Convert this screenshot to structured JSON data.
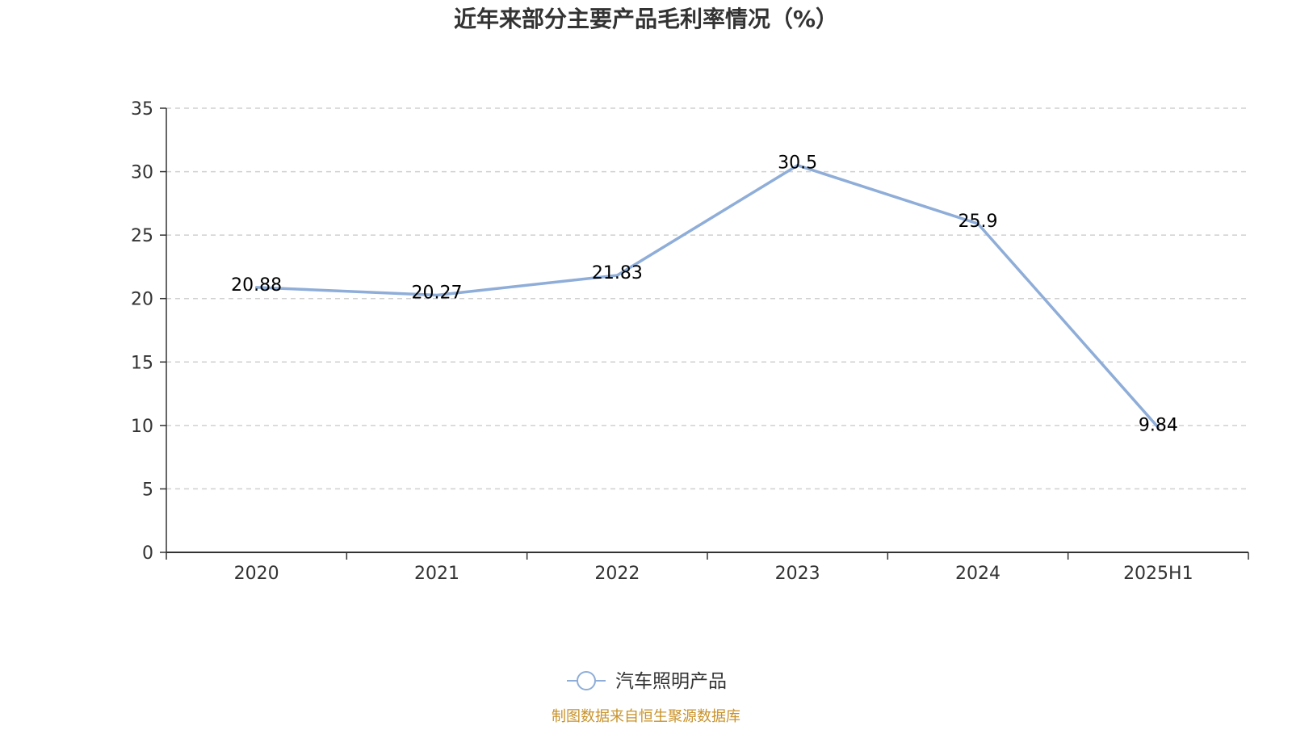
{
  "chart_data": {
    "type": "line",
    "title": "近年来部分主要产品毛利率情况（%）",
    "categories": [
      "2020",
      "2021",
      "2022",
      "2023",
      "2024",
      "2025H1"
    ],
    "series": [
      {
        "name": "汽车照明产品",
        "values": [
          20.88,
          20.27,
          21.83,
          30.5,
          25.9,
          9.84
        ],
        "labels": [
          "20.88",
          "20.27",
          "21.83",
          "30.5",
          "25.9",
          "9.84"
        ],
        "color": "#8eadd8"
      }
    ],
    "ylim": [
      0,
      35
    ],
    "yticks": [
      0,
      5,
      10,
      15,
      20,
      25,
      30,
      35
    ],
    "ytick_labels": [
      "0",
      "5",
      "10",
      "15",
      "20",
      "25",
      "30",
      "35"
    ],
    "grid": "horizontal-dashed",
    "legend": "bottom-center",
    "xlabel": "",
    "ylabel": ""
  },
  "footer": {
    "source": "制图数据来自恒生聚源数据库",
    "source_color": "#c8922a"
  }
}
